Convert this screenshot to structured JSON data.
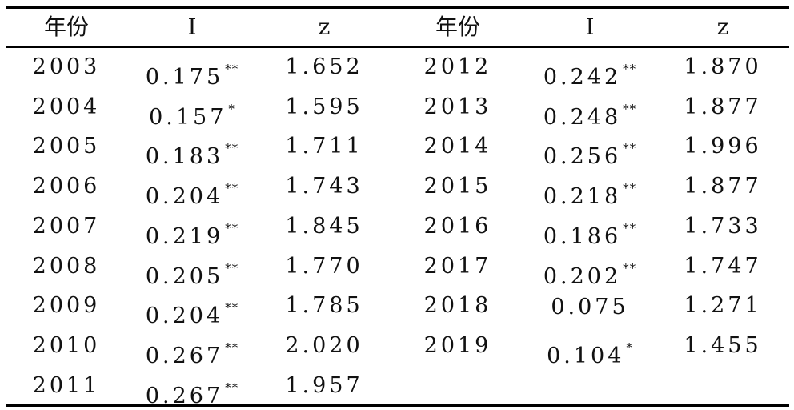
{
  "table": {
    "header": [
      "年份",
      "I",
      "z",
      "年份",
      "I",
      "z"
    ],
    "rows": [
      {
        "left": {
          "year": "2003",
          "I": "0.175",
          "sig": "**",
          "z": "1.652"
        },
        "right": {
          "year": "2012",
          "I": "0.242",
          "sig": "**",
          "z": "1.870"
        }
      },
      {
        "left": {
          "year": "2004",
          "I": "0.157",
          "sig": "*",
          "z": "1.595"
        },
        "right": {
          "year": "2013",
          "I": "0.248",
          "sig": "**",
          "z": "1.877"
        }
      },
      {
        "left": {
          "year": "2005",
          "I": "0.183",
          "sig": "**",
          "z": "1.711"
        },
        "right": {
          "year": "2014",
          "I": "0.256",
          "sig": "**",
          "z": "1.996"
        }
      },
      {
        "left": {
          "year": "2006",
          "I": "0.204",
          "sig": "**",
          "z": "1.743"
        },
        "right": {
          "year": "2015",
          "I": "0.218",
          "sig": "**",
          "z": "1.877"
        }
      },
      {
        "left": {
          "year": "2007",
          "I": "0.219",
          "sig": "**",
          "z": "1.845"
        },
        "right": {
          "year": "2016",
          "I": "0.186",
          "sig": "**",
          "z": "1.733"
        }
      },
      {
        "left": {
          "year": "2008",
          "I": "0.205",
          "sig": "**",
          "z": "1.770"
        },
        "right": {
          "year": "2017",
          "I": "0.202",
          "sig": "**",
          "z": "1.747"
        }
      },
      {
        "left": {
          "year": "2009",
          "I": "0.204",
          "sig": "**",
          "z": "1.785"
        },
        "right": {
          "year": "2018",
          "I": "0.075",
          "z": "1.271"
        }
      },
      {
        "left": {
          "year": "2010",
          "I": "0.267",
          "sig": "**",
          "z": "2.020"
        },
        "right": {
          "year": "2019",
          "I": "0.104",
          "sig": "*",
          "z": "1.455"
        }
      },
      {
        "left": {
          "year": "2011",
          "I": "0.267",
          "sig": "**",
          "z": "1.957"
        }
      }
    ]
  }
}
